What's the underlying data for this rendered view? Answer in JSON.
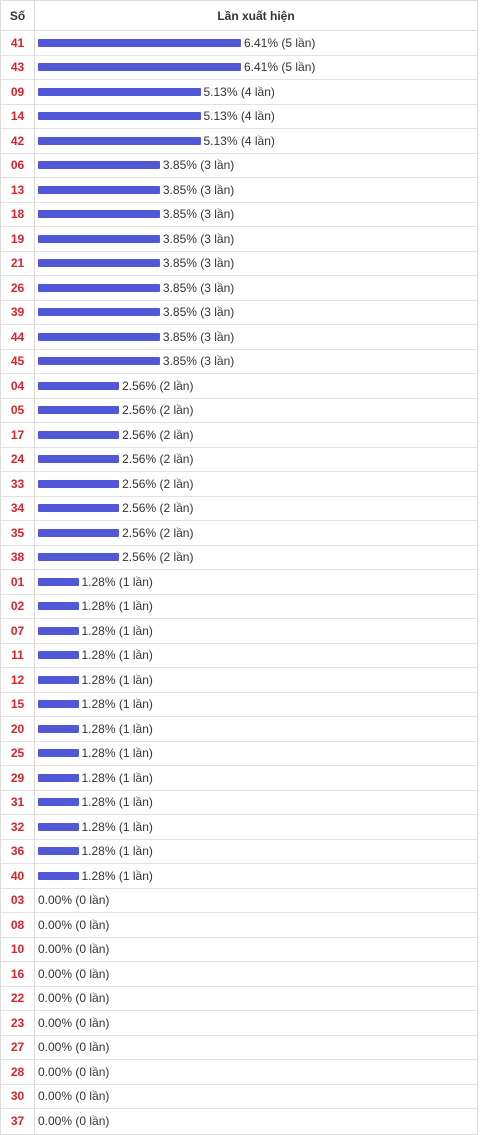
{
  "header": {
    "col_number": "Số",
    "col_frequency": "Lần xuất hiện"
  },
  "colors": {
    "bar": "#5058d8",
    "number": "#d8232a"
  },
  "chart_data": {
    "type": "bar",
    "orientation": "horizontal",
    "categories": [
      "41",
      "43",
      "09",
      "14",
      "42",
      "06",
      "13",
      "18",
      "19",
      "21",
      "26",
      "39",
      "44",
      "45",
      "04",
      "05",
      "17",
      "24",
      "33",
      "34",
      "35",
      "38",
      "01",
      "02",
      "07",
      "11",
      "12",
      "15",
      "20",
      "25",
      "29",
      "31",
      "32",
      "36",
      "40",
      "03",
      "08",
      "10",
      "16",
      "22",
      "23",
      "27",
      "28",
      "30",
      "37"
    ],
    "values": [
      6.41,
      6.41,
      5.13,
      5.13,
      5.13,
      3.85,
      3.85,
      3.85,
      3.85,
      3.85,
      3.85,
      3.85,
      3.85,
      3.85,
      2.56,
      2.56,
      2.56,
      2.56,
      2.56,
      2.56,
      2.56,
      2.56,
      1.28,
      1.28,
      1.28,
      1.28,
      1.28,
      1.28,
      1.28,
      1.28,
      1.28,
      1.28,
      1.28,
      1.28,
      1.28,
      0,
      0,
      0,
      0,
      0,
      0,
      0,
      0,
      0,
      0
    ],
    "labels": [
      "6.41% (5 lần)",
      "6.41% (5 lần)",
      "5.13% (4 lần)",
      "5.13% (4 lần)",
      "5.13% (4 lần)",
      "3.85% (3 lần)",
      "3.85% (3 lần)",
      "3.85% (3 lần)",
      "3.85% (3 lần)",
      "3.85% (3 lần)",
      "3.85% (3 lần)",
      "3.85% (3 lần)",
      "3.85% (3 lần)",
      "3.85% (3 lần)",
      "2.56% (2 lần)",
      "2.56% (2 lần)",
      "2.56% (2 lần)",
      "2.56% (2 lần)",
      "2.56% (2 lần)",
      "2.56% (2 lần)",
      "2.56% (2 lần)",
      "2.56% (2 lần)",
      "1.28% (1 lần)",
      "1.28% (1 lần)",
      "1.28% (1 lần)",
      "1.28% (1 lần)",
      "1.28% (1 lần)",
      "1.28% (1 lần)",
      "1.28% (1 lần)",
      "1.28% (1 lần)",
      "1.28% (1 lần)",
      "1.28% (1 lần)",
      "1.28% (1 lần)",
      "1.28% (1 lần)",
      "1.28% (1 lần)",
      "0.00% (0 lần)",
      "0.00% (0 lần)",
      "0.00% (0 lần)",
      "0.00% (0 lần)",
      "0.00% (0 lần)",
      "0.00% (0 lần)",
      "0.00% (0 lần)",
      "0.00% (0 lần)",
      "0.00% (0 lần)",
      "0.00% (0 lần)"
    ]
  }
}
